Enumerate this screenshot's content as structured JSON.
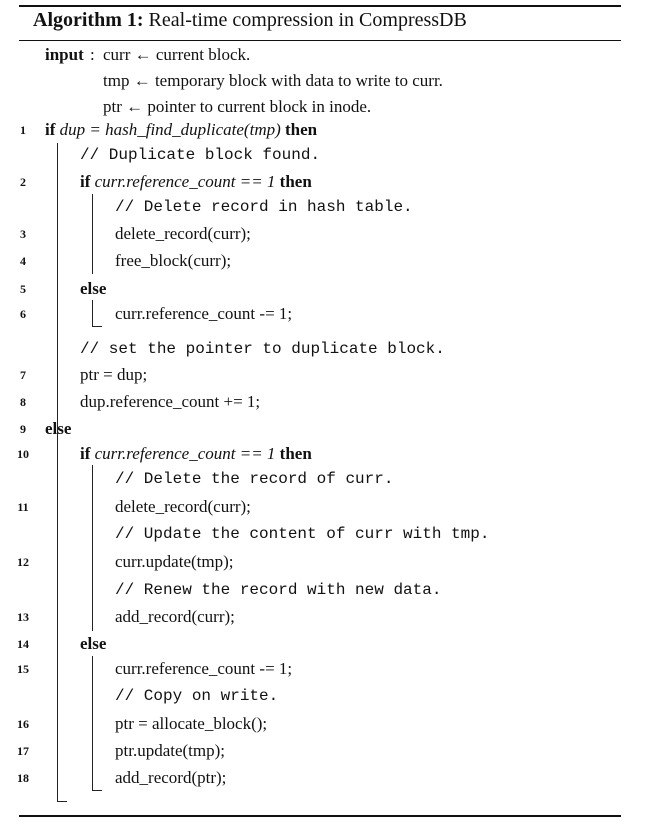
{
  "header": {
    "label": "Algorithm 1:",
    "title": "Real-time compression in CompressDB"
  },
  "input": {
    "label": "input",
    "lines": [
      "curr ← current block.",
      "tmp ← temporary block with data to write to curr.",
      "ptr ← pointer to current block in inode."
    ]
  },
  "lines": [
    {
      "num": "1",
      "parts": [
        {
          "t": "if",
          "c": "kw"
        },
        {
          "t": " dup = hash_find_duplicate(tmp) ",
          "c": "it"
        },
        {
          "t": "then",
          "c": "kw"
        }
      ]
    },
    {
      "num": "",
      "parts": [
        {
          "t": "// Duplicate block found.",
          "c": "mono"
        }
      ]
    },
    {
      "num": "2",
      "parts": [
        {
          "t": "if",
          "c": "kw"
        },
        {
          "t": " curr.reference_count == 1 ",
          "c": "it"
        },
        {
          "t": "then",
          "c": "kw"
        }
      ]
    },
    {
      "num": "",
      "parts": [
        {
          "t": "// Delete record in hash table.",
          "c": "mono"
        }
      ]
    },
    {
      "num": "3",
      "parts": [
        {
          "t": "delete_record(curr);",
          "c": ""
        }
      ]
    },
    {
      "num": "4",
      "parts": [
        {
          "t": "free_block(curr);",
          "c": ""
        }
      ]
    },
    {
      "num": "5",
      "parts": [
        {
          "t": "else",
          "c": "kw"
        }
      ]
    },
    {
      "num": "6",
      "parts": [
        {
          "t": "curr.reference_count -= 1;",
          "c": ""
        }
      ]
    },
    {
      "num": "",
      "parts": [
        {
          "t": "// set the pointer to duplicate block.",
          "c": "mono"
        }
      ]
    },
    {
      "num": "7",
      "parts": [
        {
          "t": "ptr = dup;",
          "c": ""
        }
      ]
    },
    {
      "num": "8",
      "parts": [
        {
          "t": "dup.reference_count += 1;",
          "c": ""
        }
      ]
    },
    {
      "num": "9",
      "parts": [
        {
          "t": "else",
          "c": "kw"
        }
      ]
    },
    {
      "num": "10",
      "parts": [
        {
          "t": "if",
          "c": "kw"
        },
        {
          "t": " curr.reference_count == 1 ",
          "c": "it"
        },
        {
          "t": "then",
          "c": "kw"
        }
      ]
    },
    {
      "num": "",
      "parts": [
        {
          "t": "// Delete the record of curr.",
          "c": "mono"
        }
      ]
    },
    {
      "num": "11",
      "parts": [
        {
          "t": "delete_record(curr);",
          "c": ""
        }
      ]
    },
    {
      "num": "",
      "parts": [
        {
          "t": "// Update the content of curr with tmp.",
          "c": "mono"
        }
      ]
    },
    {
      "num": "12",
      "parts": [
        {
          "t": "curr.update(tmp);",
          "c": ""
        }
      ]
    },
    {
      "num": "",
      "parts": [
        {
          "t": "// Renew the record with new data.",
          "c": "mono"
        }
      ]
    },
    {
      "num": "13",
      "parts": [
        {
          "t": "add_record(curr);",
          "c": ""
        }
      ]
    },
    {
      "num": "14",
      "parts": [
        {
          "t": "else",
          "c": "kw"
        }
      ]
    },
    {
      "num": "15",
      "parts": [
        {
          "t": "curr.reference_count -= 1;",
          "c": ""
        }
      ]
    },
    {
      "num": "",
      "parts": [
        {
          "t": "// Copy on write.",
          "c": "mono"
        }
      ]
    },
    {
      "num": "16",
      "parts": [
        {
          "t": "ptr = allocate_block();",
          "c": ""
        }
      ]
    },
    {
      "num": "17",
      "parts": [
        {
          "t": "ptr.update(tmp);",
          "c": ""
        }
      ]
    },
    {
      "num": "18",
      "parts": [
        {
          "t": "add_record(ptr);",
          "c": ""
        }
      ]
    }
  ]
}
